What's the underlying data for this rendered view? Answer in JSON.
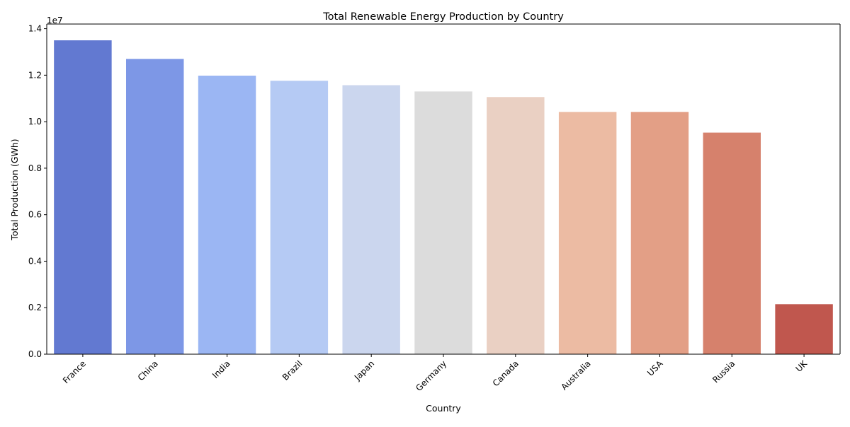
{
  "chart_data": {
    "type": "bar",
    "title": "Total Renewable Energy Production by Country",
    "xlabel": "Country",
    "ylabel": "Total Production (GWh)",
    "scale_label": "1e7",
    "scale_factor": 10000000,
    "categories": [
      "France",
      "China",
      "India",
      "Brazil",
      "Japan",
      "Germany",
      "Canada",
      "Australia",
      "USA",
      "Russia",
      "UK"
    ],
    "values": [
      13500000,
      12700000,
      11980000,
      11760000,
      11570000,
      11300000,
      11060000,
      10420000,
      10420000,
      9530000,
      2150000
    ],
    "colors": [
      "#6279d1",
      "#7d97e6",
      "#9bb6f3",
      "#b5caf4",
      "#cbd6ee",
      "#dcdcdc",
      "#ead0c3",
      "#ecbba3",
      "#e39f86",
      "#d6816c",
      "#c0574e"
    ],
    "ylim": [
      0,
      14200000
    ],
    "yticks": [
      0,
      2000000,
      4000000,
      6000000,
      8000000,
      10000000,
      12000000,
      14000000
    ],
    "ytick_labels": [
      "0.0",
      "0.2",
      "0.4",
      "0.6",
      "0.8",
      "1.0",
      "1.2",
      "1.4"
    ],
    "grid": false,
    "legend": "none"
  }
}
